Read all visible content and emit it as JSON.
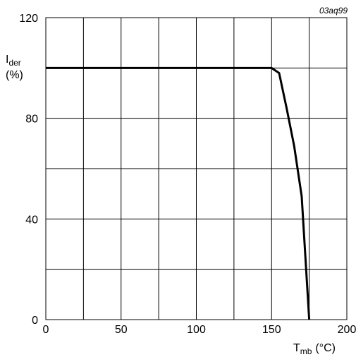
{
  "figure_ref": "03aq99",
  "chart_data": {
    "type": "line",
    "xlim": [
      0,
      200
    ],
    "ylim": [
      0,
      120
    ],
    "x_ticks": [
      0,
      50,
      100,
      150,
      200
    ],
    "y_ticks": [
      0,
      40,
      80,
      120
    ],
    "x_grid_step": 25,
    "y_grid_step": 20,
    "grid": true,
    "ylabel_main": "I",
    "ylabel_sub": "der",
    "ylabel_unit": "(%)",
    "xlabel_main": "T",
    "xlabel_sub": "mb",
    "xlabel_unit": "(°C)",
    "series": [
      {
        "x": [
          0,
          150,
          155,
          160,
          165,
          170,
          175
        ],
        "y": [
          100,
          100,
          98,
          84,
          69,
          49,
          0
        ]
      }
    ]
  }
}
